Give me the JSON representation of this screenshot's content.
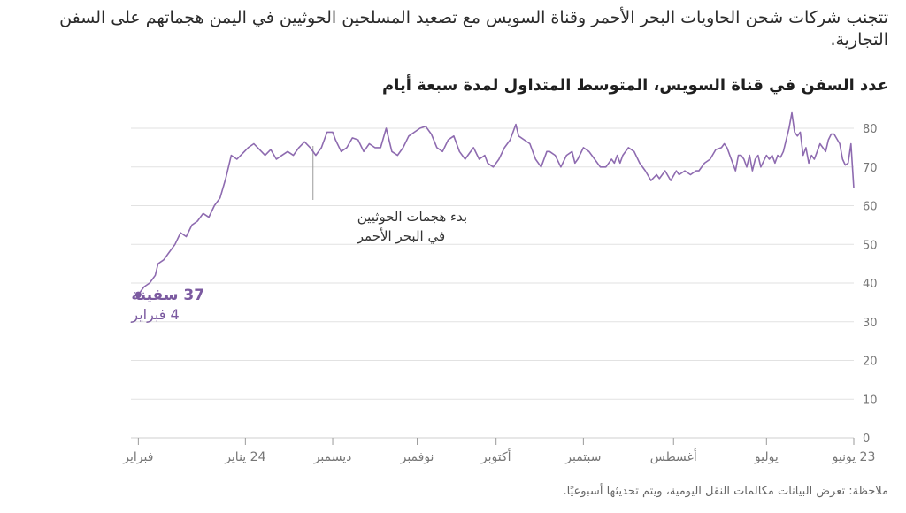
{
  "headline": "تتجنب شركات شحن الحاويات البحر الأحمر وقناة السويس مع تصعيد المسلحين الحوثيين في اليمن هجماتهم على السفن التجارية.",
  "note": "ملاحظة: تعرض البيانات مكالمات النقل اليومية، ويتم تحديثها أسبوعيًا.",
  "colors": {
    "line": "#8e6bb0",
    "accent": "#7b5aa0",
    "grid": "#e2e2e2"
  },
  "chart_data": {
    "type": "line",
    "title": "عدد السفن في قناة السويس، المتوسط المتداول لمدة سبعة أيام",
    "xlabel": "",
    "ylabel": "",
    "ylim": [
      0,
      80
    ],
    "yticks": [
      0,
      10,
      20,
      30,
      40,
      50,
      60,
      70,
      80
    ],
    "x_direction": "right-to-left",
    "x_range_days": [
      0,
      256
    ],
    "xticks": [
      {
        "label": "23 يونيو",
        "day": 0
      },
      {
        "label": "يوليو",
        "day": 31
      },
      {
        "label": "أغسطس",
        "day": 64
      },
      {
        "label": "سبتمبر",
        "day": 96
      },
      {
        "label": "أكتوبر",
        "day": 127
      },
      {
        "label": "نوفمبر",
        "day": 155
      },
      {
        "label": "ديسمبر",
        "day": 185
      },
      {
        "label": "24 يناير",
        "day": 216
      },
      {
        "label": "فبراير",
        "day": 254
      }
    ],
    "series": [
      {
        "name": "عدد السفن",
        "points": [
          [
            0,
            64.5
          ],
          [
            1,
            76
          ],
          [
            2,
            71
          ],
          [
            3,
            70.5
          ],
          [
            4,
            72
          ],
          [
            5,
            76
          ],
          [
            7,
            78.5
          ],
          [
            8,
            78.5
          ],
          [
            9,
            77
          ],
          [
            10,
            74
          ],
          [
            12,
            76
          ],
          [
            13,
            74
          ],
          [
            14,
            72
          ],
          [
            15,
            73
          ],
          [
            16,
            71
          ],
          [
            17,
            75
          ],
          [
            18,
            73
          ],
          [
            19,
            79
          ],
          [
            20,
            78
          ],
          [
            21,
            79
          ],
          [
            22,
            84
          ],
          [
            23,
            80
          ],
          [
            24,
            77
          ],
          [
            25,
            74
          ],
          [
            26,
            72.5
          ],
          [
            27,
            73
          ],
          [
            28,
            71
          ],
          [
            29,
            73
          ],
          [
            30,
            72
          ],
          [
            31,
            73
          ],
          [
            33,
            70
          ],
          [
            34,
            73
          ],
          [
            35,
            72
          ],
          [
            36,
            69
          ],
          [
            37,
            73
          ],
          [
            38,
            70
          ],
          [
            39,
            72
          ],
          [
            40,
            73
          ],
          [
            41,
            73
          ],
          [
            42,
            69
          ],
          [
            43,
            71
          ],
          [
            44,
            73
          ],
          [
            45,
            75
          ],
          [
            46,
            76
          ],
          [
            47,
            75
          ],
          [
            49,
            74.5
          ],
          [
            51,
            72
          ],
          [
            53,
            71
          ],
          [
            55,
            69
          ],
          [
            56,
            69
          ],
          [
            58,
            68
          ],
          [
            60,
            69
          ],
          [
            62,
            68
          ],
          [
            63,
            69
          ],
          [
            65,
            66.5
          ],
          [
            67,
            69
          ],
          [
            69,
            67
          ],
          [
            70,
            68
          ],
          [
            72,
            66.5
          ],
          [
            74,
            69
          ],
          [
            76,
            71
          ],
          [
            78,
            74
          ],
          [
            80,
            75
          ],
          [
            82,
            73
          ],
          [
            83,
            71
          ],
          [
            84,
            73
          ],
          [
            85,
            71
          ],
          [
            86,
            72
          ],
          [
            88,
            70
          ],
          [
            90,
            70
          ],
          [
            92,
            72
          ],
          [
            94,
            74
          ],
          [
            96,
            75
          ],
          [
            98,
            72
          ],
          [
            99,
            71
          ],
          [
            100,
            74
          ],
          [
            102,
            73
          ],
          [
            104,
            70
          ],
          [
            106,
            73
          ],
          [
            108,
            74
          ],
          [
            109,
            74
          ],
          [
            111,
            70
          ],
          [
            113,
            72
          ],
          [
            115,
            76
          ],
          [
            117,
            77
          ],
          [
            119,
            78
          ],
          [
            120,
            81
          ],
          [
            122,
            77
          ],
          [
            124,
            75
          ],
          [
            126,
            72
          ],
          [
            128,
            70
          ],
          [
            130,
            71
          ],
          [
            131,
            73
          ],
          [
            133,
            72
          ],
          [
            135,
            75
          ],
          [
            137,
            73
          ],
          [
            138,
            72
          ],
          [
            140,
            74
          ],
          [
            142,
            78
          ],
          [
            144,
            77
          ],
          [
            146,
            74
          ],
          [
            148,
            75
          ],
          [
            150,
            78.5
          ],
          [
            152,
            80.5
          ],
          [
            154,
            80
          ],
          [
            156,
            79
          ],
          [
            158,
            78
          ],
          [
            160,
            75
          ],
          [
            162,
            73
          ],
          [
            164,
            74
          ],
          [
            166,
            80
          ],
          [
            168,
            75
          ],
          [
            170,
            75
          ],
          [
            172,
            76
          ],
          [
            174,
            74
          ],
          [
            176,
            77
          ],
          [
            178,
            77.5
          ],
          [
            180,
            75
          ],
          [
            182,
            74
          ],
          [
            184,
            77
          ],
          [
            185,
            79
          ],
          [
            187,
            79
          ],
          [
            189,
            75
          ],
          [
            191,
            73
          ],
          [
            193,
            75
          ],
          [
            195,
            76.5
          ],
          [
            197,
            75
          ],
          [
            199,
            73
          ],
          [
            201,
            74
          ],
          [
            203,
            73
          ],
          [
            205,
            72
          ],
          [
            207,
            74.5
          ],
          [
            209,
            73
          ],
          [
            211,
            74.5
          ],
          [
            213,
            76
          ],
          [
            215,
            75
          ],
          [
            217,
            73.5
          ],
          [
            219,
            72
          ],
          [
            221,
            73
          ],
          [
            223,
            67
          ],
          [
            225,
            62
          ],
          [
            227,
            60
          ],
          [
            229,
            57
          ],
          [
            231,
            58
          ],
          [
            233,
            56
          ],
          [
            235,
            55
          ],
          [
            237,
            52
          ],
          [
            239,
            53
          ],
          [
            241,
            50
          ],
          [
            243,
            48
          ],
          [
            245,
            46
          ],
          [
            247,
            45
          ],
          [
            248,
            42
          ],
          [
            250,
            40
          ],
          [
            252,
            39
          ],
          [
            254,
            37
          ]
        ]
      }
    ],
    "annotations": [
      {
        "day": 192,
        "lines": [
          "بدء هجمات الحوثيين",
          "في البحر الأحمر"
        ]
      }
    ],
    "start_label": {
      "value": "37 سفينة",
      "date": "4 فبراير"
    }
  }
}
